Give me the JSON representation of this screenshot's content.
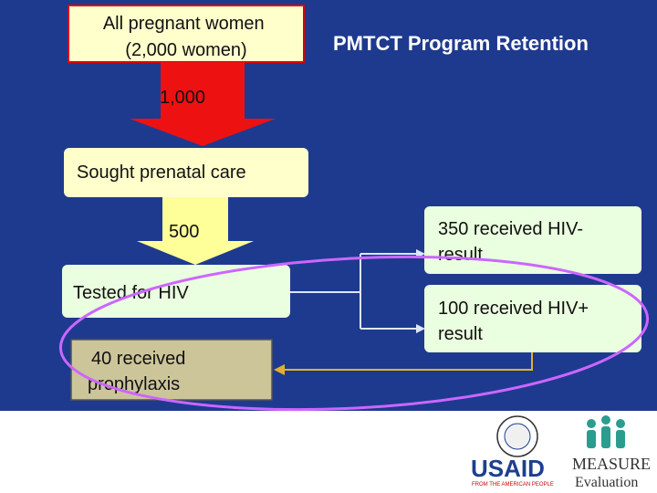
{
  "title": "PMTCT Program Retention",
  "nodes": [
    {
      "lines": [
        "All pregnant women",
        "(2,000 women)"
      ]
    },
    {
      "lines": [
        "Sought prenatal care"
      ]
    },
    {
      "lines": [
        "Tested for HIV"
      ]
    },
    {
      "lines": [
        "40 received",
        "prophylaxis"
      ]
    },
    {
      "lines": [
        "350 received HIV-",
        "result"
      ]
    },
    {
      "lines": [
        "100 received HIV+",
        "result"
      ]
    }
  ],
  "arrows": [
    {
      "label": "1,000"
    },
    {
      "label": "500"
    }
  ],
  "logos": {
    "usaid": "USAID",
    "usaid_tagline": "FROM THE AMERICAN PEOPLE",
    "measure": "MEASURE",
    "measure_sub": "Evaluation"
  }
}
